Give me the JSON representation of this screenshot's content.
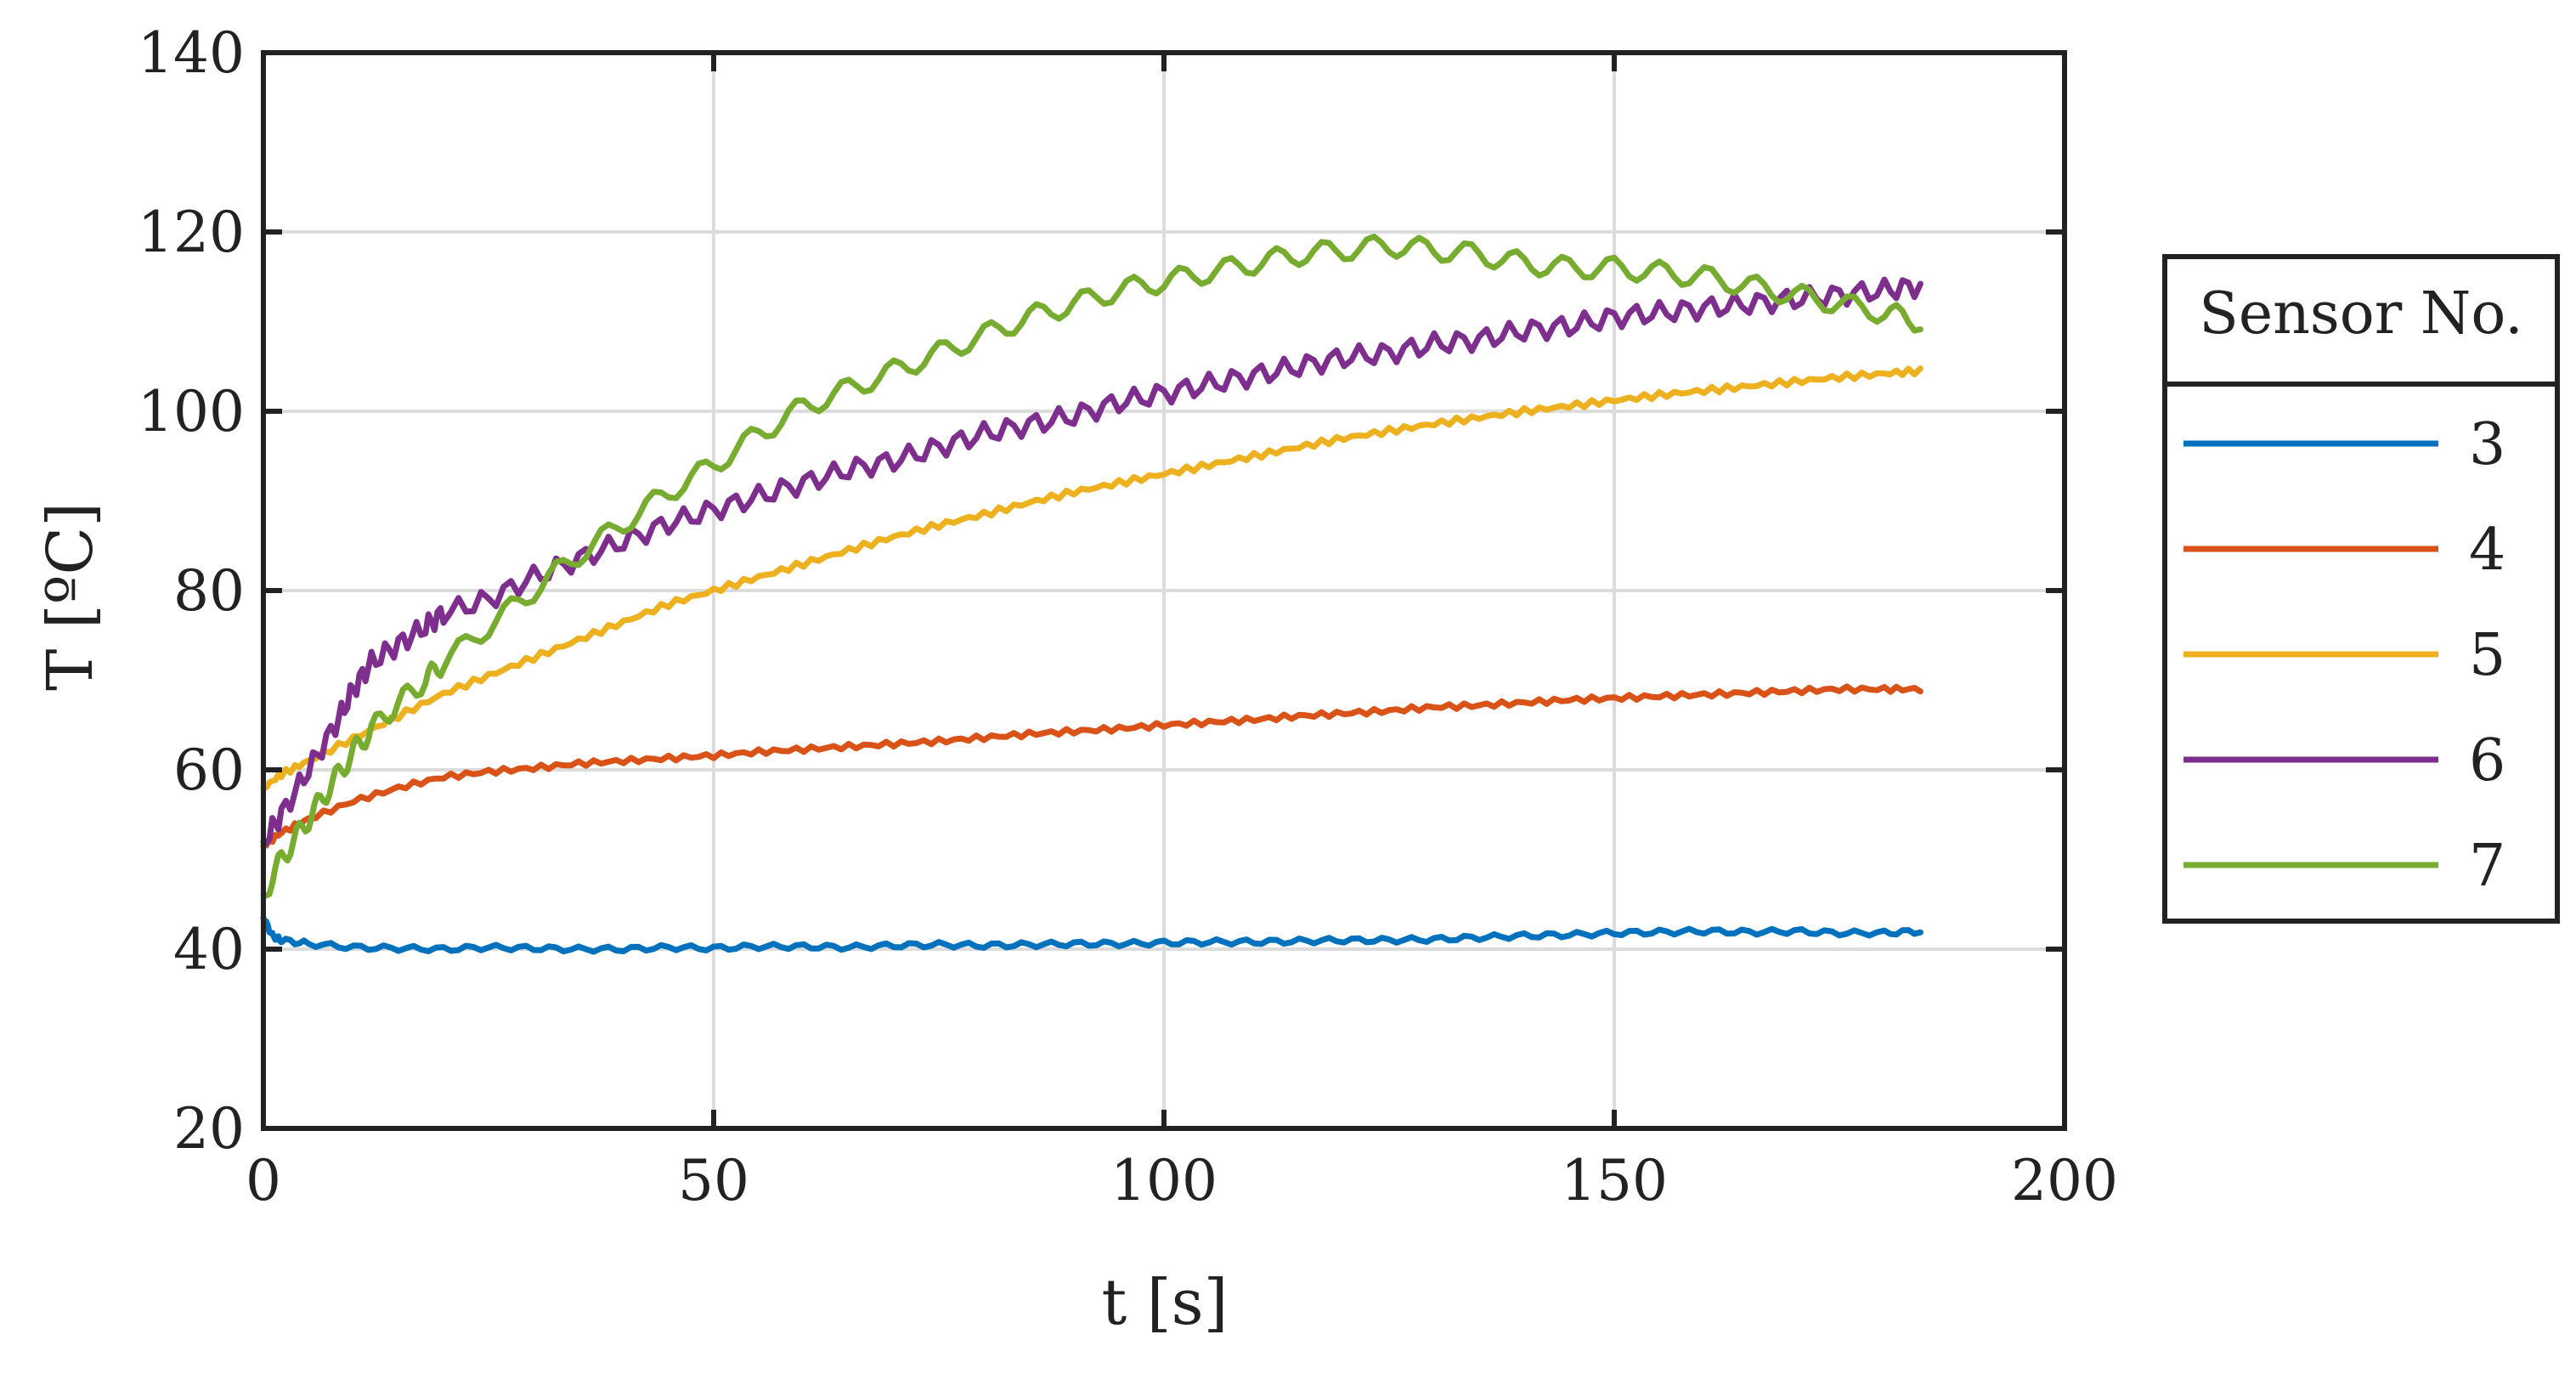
{
  "chart_data": {
    "type": "line",
    "xlabel": "t [s]",
    "ylabel": "T [ºC]",
    "xlim": [
      0,
      200
    ],
    "ylim": [
      20,
      140
    ],
    "xticks": [
      0,
      50,
      100,
      150,
      200
    ],
    "yticks": [
      20,
      40,
      60,
      80,
      100,
      120,
      140
    ],
    "grid": true,
    "legend": {
      "title": "Sensor No.",
      "placement": "outside-right"
    },
    "series": [
      {
        "name": "3",
        "color": "#0072BD",
        "x": [
          0,
          1,
          2,
          5,
          10,
          15,
          20,
          25,
          30,
          35,
          40,
          45,
          50,
          55,
          60,
          65,
          70,
          75,
          80,
          85,
          90,
          95,
          100,
          105,
          110,
          115,
          120,
          125,
          130,
          135,
          140,
          145,
          150,
          155,
          160,
          165,
          170,
          175,
          180,
          184
        ],
        "y": [
          43.5,
          41.5,
          41,
          40.6,
          40.2,
          40.1,
          40,
          40.2,
          40.1,
          40,
          40,
          40.2,
          40.1,
          40.3,
          40.3,
          40.2,
          40.4,
          40.5,
          40.4,
          40.5,
          40.6,
          40.6,
          40.7,
          40.8,
          40.8,
          40.9,
          41,
          41,
          41.1,
          41.3,
          41.5,
          41.6,
          41.8,
          41.9,
          42,
          41.9,
          42,
          41.8,
          41.8,
          42
        ]
      },
      {
        "name": "4",
        "color": "#D95319",
        "x": [
          0,
          2,
          5,
          10,
          15,
          20,
          25,
          30,
          35,
          40,
          45,
          50,
          55,
          60,
          65,
          70,
          75,
          80,
          85,
          90,
          95,
          100,
          105,
          110,
          115,
          120,
          125,
          130,
          135,
          140,
          145,
          150,
          155,
          160,
          165,
          170,
          175,
          180,
          184
        ],
        "y": [
          51.5,
          53,
          54.5,
          56.5,
          58,
          59.2,
          59.8,
          60.2,
          60.7,
          61,
          61.3,
          61.6,
          62,
          62.3,
          62.6,
          62.9,
          63.2,
          63.6,
          64,
          64.3,
          64.6,
          65,
          65.3,
          65.6,
          66,
          66.3,
          66.6,
          67,
          67.2,
          67.5,
          67.8,
          68,
          68.2,
          68.4,
          68.6,
          68.8,
          69,
          69,
          69
        ]
      },
      {
        "name": "5",
        "color": "#EDB120",
        "x": [
          0,
          2,
          5,
          10,
          15,
          20,
          25,
          30,
          35,
          40,
          45,
          50,
          55,
          60,
          65,
          70,
          75,
          80,
          85,
          90,
          95,
          100,
          105,
          110,
          115,
          120,
          125,
          130,
          135,
          140,
          145,
          150,
          155,
          160,
          165,
          170,
          175,
          180,
          184
        ],
        "y": [
          58,
          59.5,
          61,
          63.5,
          66,
          68.5,
          70.5,
          72.5,
          74.5,
          76.5,
          78.5,
          80,
          81.5,
          83,
          84.5,
          86,
          87.3,
          88.5,
          89.8,
          91,
          92,
          93,
          94,
          95,
          96,
          97,
          97.8,
          98.6,
          99.3,
          100,
          100.6,
          101.2,
          101.8,
          102.3,
          102.8,
          103.3,
          103.8,
          104.2,
          104.5
        ]
      },
      {
        "name": "6",
        "color": "#7E2F8E",
        "x": [
          0,
          2,
          5,
          8,
          10,
          12,
          15,
          18,
          20,
          25,
          30,
          35,
          40,
          45,
          50,
          55,
          60,
          65,
          70,
          75,
          80,
          85,
          90,
          95,
          100,
          105,
          110,
          115,
          120,
          125,
          130,
          135,
          140,
          145,
          150,
          155,
          160,
          165,
          170,
          175,
          180,
          184
        ],
        "y": [
          52,
          55,
          60,
          65,
          69,
          72,
          74,
          76,
          77.5,
          79,
          81.5,
          83.5,
          85.5,
          87.5,
          89,
          90.5,
          92,
          93.5,
          94.5,
          96,
          97.5,
          98.5,
          99.5,
          101,
          102,
          103,
          104,
          105,
          106,
          106.5,
          107.5,
          108,
          109,
          109.5,
          110.5,
          111,
          111.5,
          112,
          112.5,
          113,
          113.5,
          114
        ]
      },
      {
        "name": "7",
        "color": "#77AC30",
        "x": [
          0,
          2,
          4,
          6,
          8,
          10,
          12,
          15,
          18,
          20,
          25,
          30,
          35,
          40,
          45,
          50,
          55,
          60,
          65,
          70,
          75,
          80,
          85,
          90,
          95,
          100,
          105,
          110,
          115,
          120,
          125,
          130,
          135,
          140,
          145,
          150,
          155,
          160,
          165,
          170,
          175,
          180,
          184
        ],
        "y": [
          46,
          50,
          53,
          56,
          59,
          62,
          64.5,
          67.5,
          70,
          72,
          76,
          80,
          84,
          87.5,
          91,
          94,
          97.5,
          100.5,
          102.5,
          104.5,
          106.5,
          108.5,
          110.5,
          112,
          113.5,
          114.5,
          115.5,
          116.5,
          117.5,
          118,
          118.5,
          118,
          117.5,
          116.5,
          116,
          116,
          115.5,
          115,
          114,
          113,
          112,
          111,
          110
        ]
      }
    ]
  }
}
